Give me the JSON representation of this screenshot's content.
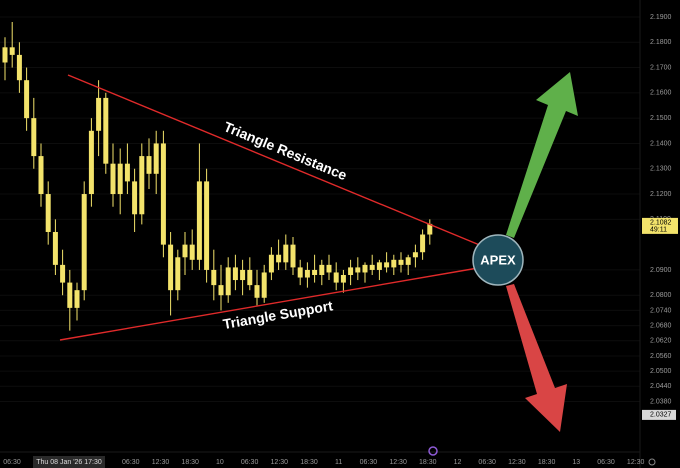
{
  "chart_data": {
    "type": "candlestick",
    "color": "#f3e36b",
    "open": [
      2.172,
      2.178,
      2.175,
      2.165,
      2.15,
      2.135,
      2.12,
      2.105,
      2.092,
      2.085,
      2.075,
      2.082,
      2.12,
      2.145,
      2.158,
      2.132,
      2.12,
      2.132,
      2.125,
      2.112,
      2.135,
      2.128,
      2.14,
      2.1,
      2.082,
      2.095,
      2.1,
      2.094,
      2.125,
      2.09,
      2.084,
      2.08,
      2.091,
      2.086,
      2.09,
      2.084,
      2.079,
      2.089,
      2.096,
      2.093,
      2.1,
      2.091,
      2.087,
      2.09,
      2.088,
      2.092,
      2.089,
      2.085,
      2.088,
      2.091,
      2.089,
      2.092,
      2.09,
      2.093,
      2.091,
      2.094,
      2.092,
      2.095,
      2.097,
      2.104
    ],
    "high": [
      2.182,
      2.188,
      2.18,
      2.17,
      2.158,
      2.14,
      2.125,
      2.11,
      2.098,
      2.09,
      2.085,
      2.125,
      2.15,
      2.165,
      2.16,
      2.14,
      2.138,
      2.14,
      2.13,
      2.14,
      2.142,
      2.145,
      2.145,
      2.105,
      2.098,
      2.105,
      2.106,
      2.14,
      2.13,
      2.098,
      2.092,
      2.095,
      2.096,
      2.094,
      2.095,
      2.09,
      2.092,
      2.099,
      2.102,
      2.104,
      2.103,
      2.094,
      2.093,
      2.096,
      2.094,
      2.096,
      2.093,
      2.09,
      2.094,
      2.095,
      2.093,
      2.096,
      2.094,
      2.097,
      2.096,
      2.097,
      2.096,
      2.1,
      2.106,
      2.11
    ],
    "low": [
      2.165,
      2.17,
      2.16,
      2.145,
      2.13,
      2.115,
      2.1,
      2.088,
      2.08,
      2.066,
      2.07,
      2.078,
      2.115,
      2.135,
      2.128,
      2.115,
      2.112,
      2.12,
      2.105,
      2.108,
      2.122,
      2.12,
      2.095,
      2.072,
      2.078,
      2.088,
      2.09,
      2.09,
      2.085,
      2.078,
      2.074,
      2.077,
      2.082,
      2.08,
      2.082,
      2.076,
      2.077,
      2.086,
      2.09,
      2.09,
      2.088,
      2.084,
      2.083,
      2.085,
      2.084,
      2.086,
      2.082,
      2.081,
      2.084,
      2.086,
      2.085,
      2.088,
      2.086,
      2.089,
      2.088,
      2.089,
      2.088,
      2.091,
      2.094,
      2.1
    ],
    "close": [
      2.178,
      2.175,
      2.165,
      2.15,
      2.135,
      2.12,
      2.105,
      2.092,
      2.085,
      2.075,
      2.082,
      2.12,
      2.145,
      2.158,
      2.132,
      2.12,
      2.132,
      2.125,
      2.112,
      2.135,
      2.128,
      2.14,
      2.1,
      2.082,
      2.095,
      2.1,
      2.094,
      2.125,
      2.09,
      2.084,
      2.08,
      2.091,
      2.086,
      2.09,
      2.084,
      2.079,
      2.089,
      2.096,
      2.093,
      2.1,
      2.091,
      2.087,
      2.09,
      2.088,
      2.092,
      2.089,
      2.085,
      2.088,
      2.091,
      2.089,
      2.092,
      2.09,
      2.093,
      2.091,
      2.094,
      2.092,
      2.095,
      2.097,
      2.104,
      2.1082
    ],
    "ylim": [
      2.0208,
      2.1967
    ],
    "yticks": [
      {
        "value": 2.19,
        "label": "2.1900"
      },
      {
        "value": 2.18,
        "label": "2.1800"
      },
      {
        "value": 2.17,
        "label": "2.1700"
      },
      {
        "value": 2.16,
        "label": "2.1600"
      },
      {
        "value": 2.15,
        "label": "2.1500"
      },
      {
        "value": 2.14,
        "label": "2.1400"
      },
      {
        "value": 2.13,
        "label": "2.1300"
      },
      {
        "value": 2.12,
        "label": "2.1200"
      },
      {
        "value": 2.11,
        "label": "2.1100"
      },
      {
        "value": 2.09,
        "label": "2.0900"
      },
      {
        "value": 2.08,
        "label": "2.0800"
      },
      {
        "value": 2.074,
        "label": "2.0740"
      },
      {
        "value": 2.068,
        "label": "2.0680"
      },
      {
        "value": 2.062,
        "label": "2.0620"
      },
      {
        "value": 2.056,
        "label": "2.0560"
      },
      {
        "value": 2.05,
        "label": "2.0500"
      },
      {
        "value": 2.044,
        "label": "2.0440"
      },
      {
        "value": 2.038,
        "label": "2.0380"
      }
    ],
    "current_price": 2.1082,
    "countdown": "49:11",
    "low_marker": 2.0327,
    "x_axis_labels": [
      "06:30",
      null,
      null,
      null,
      "06:30",
      "12:30",
      "18:30",
      "10",
      "06:30",
      "12:30",
      "18:30",
      "11",
      "06:30",
      "12:30",
      "18:30",
      "12",
      "06:30",
      "12:30",
      "18:30",
      "13",
      "06:30",
      "12:30"
    ],
    "crosshair_label": "Thu 08 Jan '26  17:30",
    "annotations": {
      "resistance": "Triangle Resistance",
      "support": "Triangle Support",
      "apex": "APEX"
    }
  }
}
